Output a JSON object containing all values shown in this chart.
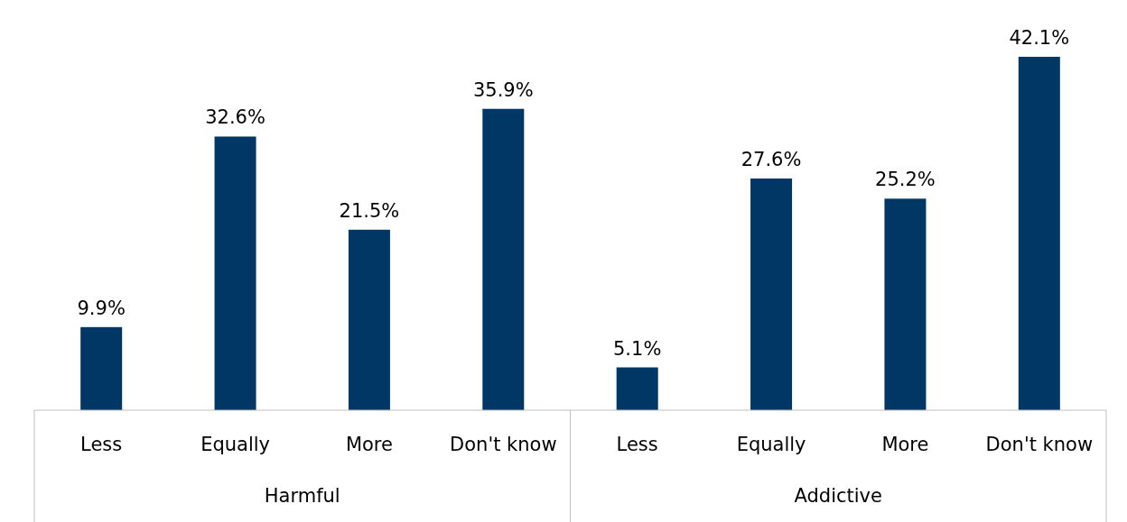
{
  "chart_data": {
    "type": "bar",
    "categories": [
      "Less",
      "Equally",
      "More",
      "Don't know",
      "Less",
      "Equally",
      "More",
      "Don't know"
    ],
    "values": [
      9.9,
      32.6,
      21.5,
      35.9,
      5.1,
      27.6,
      25.2,
      42.1
    ],
    "value_labels": [
      "9.9%",
      "32.6%",
      "21.5%",
      "35.9%",
      "5.1%",
      "27.6%",
      "25.2%",
      "42.1%"
    ],
    "color": "#003764",
    "annotations": [
      "Harmful",
      "Addictive"
    ]
  }
}
